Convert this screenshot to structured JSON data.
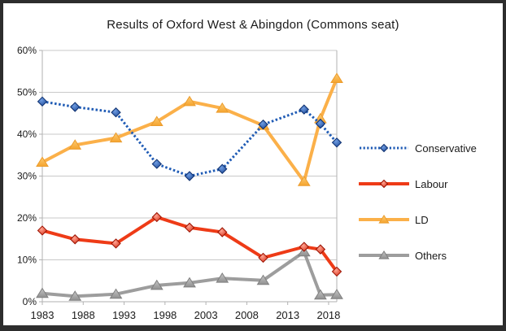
{
  "frame": {
    "border_color": "#2d2d2d",
    "background": "#ffffff"
  },
  "chart_data": {
    "type": "line",
    "title": "Results of Oxford West & Abingdon (Commons seat)",
    "xlabel": "",
    "ylabel": "",
    "xlim": [
      1983,
      2019
    ],
    "ylim": [
      0,
      60
    ],
    "grid": "horizontal",
    "legend_position": "right",
    "x": [
      1983,
      1987,
      1992,
      1997,
      2001,
      2005,
      2010,
      2015,
      2017,
      2019
    ],
    "x_tick_values": [
      1983,
      1988,
      1993,
      1998,
      2003,
      2008,
      2013,
      2018
    ],
    "x_tick_labels": [
      "1983",
      "1988",
      "1993",
      "1998",
      "2003",
      "2008",
      "2013",
      "2018"
    ],
    "y_tick_values": [
      0,
      10,
      20,
      30,
      40,
      50,
      60
    ],
    "y_tick_labels": [
      "0%",
      "10%",
      "20%",
      "30%",
      "40%",
      "50%",
      "60%"
    ],
    "grid_color": "#c9c9c9",
    "axis_color": "#b2b2b2",
    "text_color": "#1a1a1a",
    "series": [
      {
        "name": "Conservative",
        "line_style": "dotted",
        "marker": "diamond",
        "color": "#1f5bb5",
        "marker_light": "#6f9ce0",
        "marker_dark": "#123e8f",
        "marker_stroke": "#0d2f6e",
        "values": [
          47.8,
          46.5,
          45.2,
          32.9,
          30.0,
          31.7,
          42.3,
          45.9,
          42.5,
          38.0
        ]
      },
      {
        "name": "Labour",
        "line_style": "solid",
        "marker": "diamond",
        "color": "#ee3b17",
        "marker_light": "#ffa492",
        "marker_dark": "#d21f06",
        "marker_stroke": "#991100",
        "values": [
          17.0,
          14.9,
          13.9,
          20.2,
          17.7,
          16.6,
          10.5,
          13.1,
          12.5,
          7.2
        ]
      },
      {
        "name": "LD",
        "line_style": "solid",
        "marker": "triangle",
        "color": "#fbb049",
        "marker_light": "#fdcb72",
        "marker_dark": "#f5a42f",
        "marker_stroke": "#eb9c2d",
        "values": [
          33.3,
          37.4,
          39.1,
          43.0,
          47.8,
          46.2,
          42.1,
          28.7,
          43.7,
          53.3
        ]
      },
      {
        "name": "Others",
        "line_style": "solid",
        "marker": "triangle",
        "color": "#9d9d9d",
        "marker_light": "#c6c6c6",
        "marker_dark": "#909090",
        "marker_stroke": "#7f7f7f",
        "values": [
          2.0,
          1.3,
          1.8,
          3.9,
          4.5,
          5.6,
          5.1,
          11.9,
          1.6,
          1.7
        ]
      }
    ]
  }
}
